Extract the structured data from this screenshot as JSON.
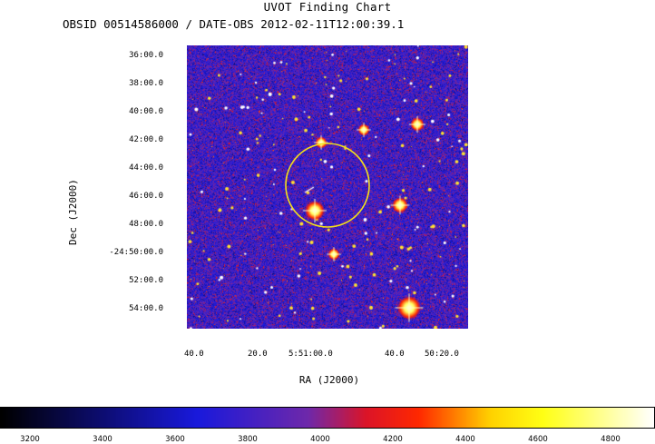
{
  "title": "UVOT Finding Chart",
  "subtitle": "OBSID 00514586000 / DATE-OBS 2012-02-11T12:00:39.1",
  "axes": {
    "xlabel": "RA (J2000)",
    "ylabel": "Dec (J2000)",
    "dec_ticks": [
      "36:00.0",
      "38:00.0",
      "40:00.0",
      "42:00.0",
      "44:00.0",
      "46:00.0",
      "48:00.0",
      "-24:50:00.0",
      "52:00.0",
      "54:00.0"
    ],
    "ra_ticks": [
      "40.0",
      "20.0",
      "5:51:00.0",
      "40.0",
      "50:20.0"
    ]
  },
  "colorbar": {
    "ticks": [
      "3200",
      "3400",
      "3600",
      "3800",
      "4000",
      "4200",
      "4400",
      "4600",
      "4800"
    ],
    "min": 3120,
    "max": 4920
  },
  "colors": {
    "circle": "#f2e01a",
    "background_field": "#1c1cb0"
  }
}
